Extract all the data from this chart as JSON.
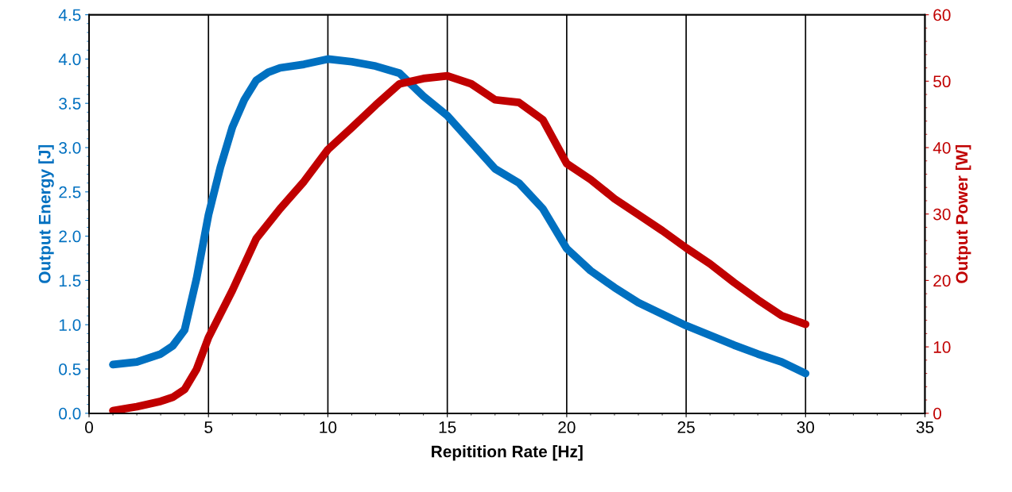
{
  "chart_data": {
    "type": "line",
    "xlabel": "Repitition Rate [Hz]",
    "ylabel": "Output Energy [J]",
    "y2label": "Output Power [W]",
    "xlim": [
      0,
      35
    ],
    "xticks": [
      0,
      5,
      10,
      15,
      20,
      25,
      30,
      35
    ],
    "ylim": [
      0,
      4.5
    ],
    "yticks": [
      {
        "value": 0,
        "label": "0.0"
      },
      {
        "value": 0.5,
        "label": "0.5"
      },
      {
        "value": 1,
        "label": "1.0"
      },
      {
        "value": 1.5,
        "label": "1.5"
      },
      {
        "value": 2,
        "label": "2.0"
      },
      {
        "value": 2.5,
        "label": "2.5"
      },
      {
        "value": 3,
        "label": "3.0"
      },
      {
        "value": 3.5,
        "label": "3.5"
      },
      {
        "value": 4,
        "label": "4.0"
      },
      {
        "value": 4.5,
        "label": "4.5"
      }
    ],
    "y2lim": [
      0,
      60
    ],
    "y2ticks": [
      0,
      10,
      20,
      30,
      40,
      50,
      60
    ],
    "grid": "x",
    "marker": "none",
    "line_style": "solid",
    "series": [
      {
        "color": "#0070c0",
        "x": [
          1,
          2,
          3,
          3.5,
          4,
          4.5,
          5,
          5.5,
          6,
          6.5,
          7,
          7.5,
          8,
          9,
          10,
          11,
          12,
          13,
          14,
          15,
          16,
          17,
          18,
          19,
          20,
          21,
          22,
          23,
          24,
          25,
          26,
          27,
          28,
          29,
          30
        ],
        "values": [
          0.55,
          0.58,
          0.67,
          0.76,
          0.94,
          1.52,
          2.24,
          2.78,
          3.23,
          3.54,
          3.76,
          3.85,
          3.9,
          3.94,
          4.0,
          3.97,
          3.92,
          3.84,
          3.58,
          3.36,
          3.06,
          2.76,
          2.6,
          2.31,
          1.86,
          1.61,
          1.42,
          1.25,
          1.12,
          0.99,
          0.88,
          0.77,
          0.67,
          0.58,
          0.45
        ]
      },
      {
        "color": "#c00000",
        "axis": "y2",
        "x": [
          1,
          2,
          3,
          3.5,
          4,
          4.5,
          5,
          6,
          7,
          8,
          9,
          10,
          11,
          12,
          13,
          14,
          15,
          16,
          17,
          18,
          19,
          20,
          21,
          22,
          23,
          24,
          25,
          26,
          27,
          28,
          29,
          30
        ],
        "values": [
          0.4,
          1.0,
          1.8,
          2.4,
          3.6,
          6.6,
          11.4,
          18.5,
          26.3,
          30.8,
          34.9,
          39.7,
          43.0,
          46.4,
          49.6,
          50.4,
          50.8,
          49.6,
          47.2,
          46.8,
          44.2,
          37.6,
          35.2,
          32.3,
          29.9,
          27.5,
          24.9,
          22.5,
          19.7,
          17.1,
          14.7,
          13.4
        ]
      }
    ]
  }
}
